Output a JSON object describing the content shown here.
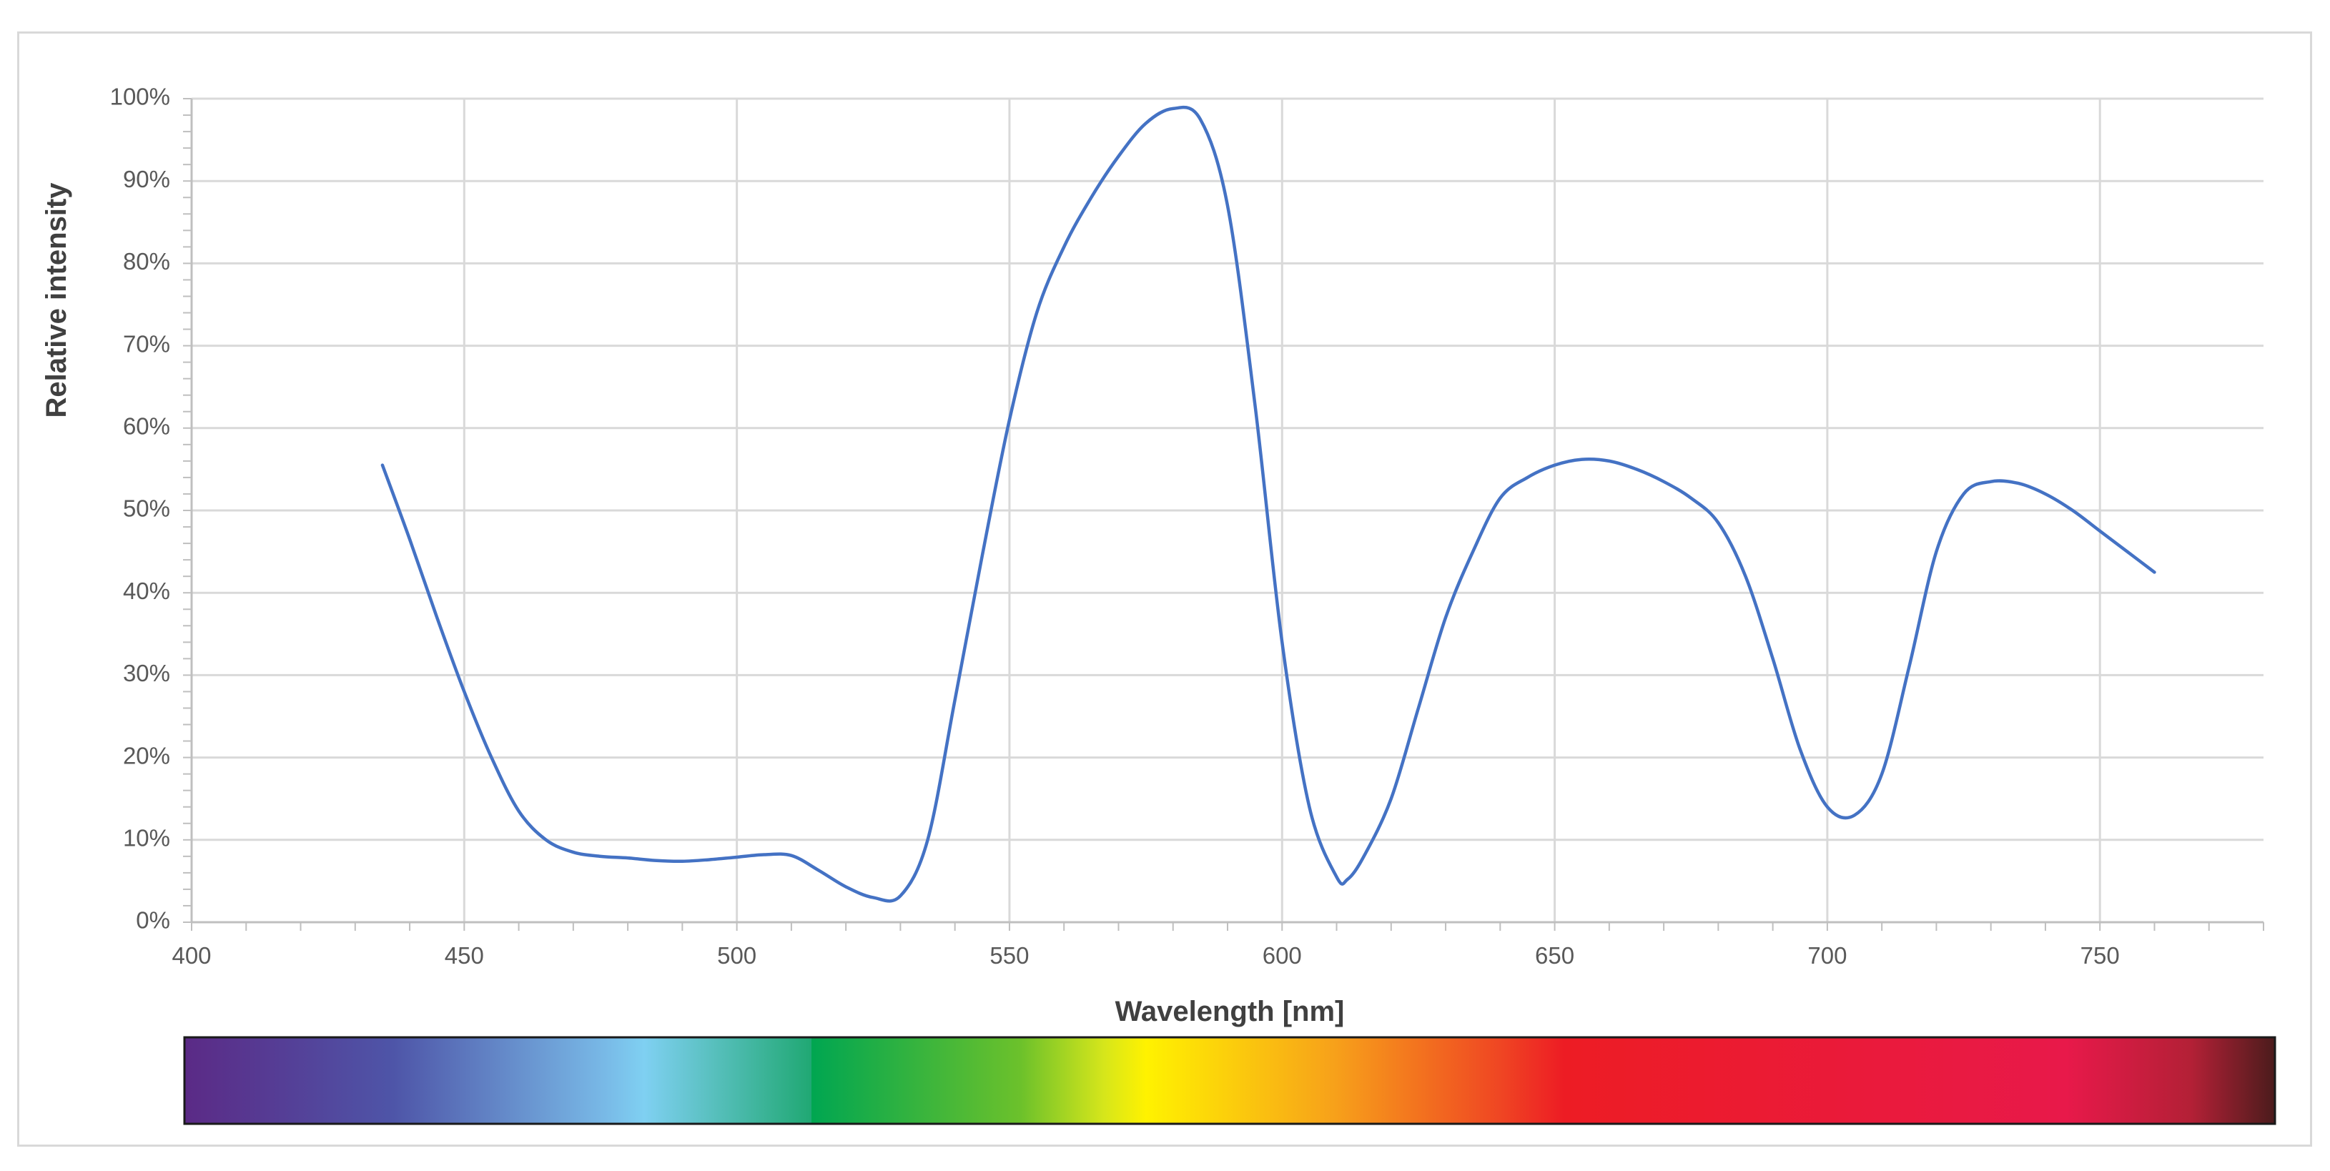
{
  "chart_data": {
    "type": "line",
    "title": "",
    "xlabel": "Wavelength [nm]",
    "ylabel": "Relative intensity",
    "xlim": [
      400,
      780
    ],
    "ylim": [
      0,
      100
    ],
    "x_ticks": [
      400,
      450,
      500,
      550,
      600,
      650,
      700,
      750
    ],
    "y_ticks": [
      "0%",
      "10%",
      "20%",
      "30%",
      "40%",
      "50%",
      "60%",
      "70%",
      "80%",
      "90%",
      "100%"
    ],
    "grid": true,
    "legend": "none",
    "line_color": "#4472c4",
    "series": [
      {
        "x": [
          435,
          440,
          445,
          450,
          455,
          460,
          465,
          470,
          475,
          480,
          485,
          490,
          495,
          500,
          505,
          510,
          515,
          520,
          525,
          530,
          535,
          540,
          545,
          550,
          555,
          560,
          565,
          570,
          575,
          580,
          585,
          590,
          595,
          600,
          605,
          610,
          612,
          615,
          620,
          625,
          630,
          635,
          640,
          645,
          650,
          655,
          660,
          665,
          670,
          675,
          680,
          685,
          690,
          695,
          700,
          705,
          710,
          715,
          720,
          725,
          730,
          735,
          740,
          745,
          750,
          755,
          760
        ],
        "y": [
          55.5,
          46.5,
          37,
          28,
          20,
          13.5,
          10,
          8.5,
          8,
          7.8,
          7.5,
          7.4,
          7.6,
          7.9,
          8.2,
          8.1,
          6.3,
          4.3,
          3.0,
          3.2,
          10,
          27,
          44.5,
          61,
          74,
          82,
          88,
          93,
          97,
          98.8,
          97.5,
          87,
          63,
          34,
          14,
          5.5,
          5.2,
          8,
          15,
          26,
          37,
          45,
          51.5,
          54,
          55.5,
          56.2,
          56,
          55,
          53.5,
          51.5,
          48.5,
          42,
          32,
          21,
          14,
          13,
          18,
          31,
          45,
          52,
          53.5,
          53.3,
          52,
          50,
          47.5,
          45,
          42.5
        ]
      }
    ],
    "color_bar": {
      "label": "visible spectrum",
      "stops": [
        {
          "offset": 0.0,
          "color": "#5b2a86"
        },
        {
          "offset": 0.1,
          "color": "#4e55a8"
        },
        {
          "offset": 0.2,
          "color": "#78b8e6"
        },
        {
          "offset": 0.22,
          "color": "#7fd0f2"
        },
        {
          "offset": 0.3,
          "color": "#20a873"
        },
        {
          "offset": 0.3,
          "color": "#00a651"
        },
        {
          "offset": 0.4,
          "color": "#6cc12b"
        },
        {
          "offset": 0.44,
          "color": "#d6e61b"
        },
        {
          "offset": 0.46,
          "color": "#fff200"
        },
        {
          "offset": 0.55,
          "color": "#f7a11a"
        },
        {
          "offset": 0.63,
          "color": "#ef4523"
        },
        {
          "offset": 0.66,
          "color": "#ed1c24"
        },
        {
          "offset": 0.9,
          "color": "#e8194a"
        },
        {
          "offset": 0.96,
          "color": "#b32036"
        },
        {
          "offset": 1.0,
          "color": "#4b1c1c"
        }
      ]
    }
  }
}
